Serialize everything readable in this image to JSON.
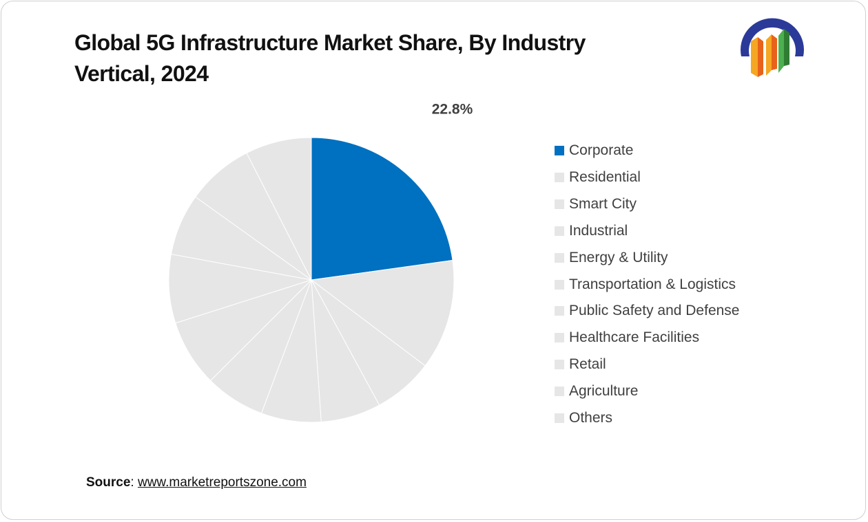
{
  "title": "Global 5G Infrastructure Market Share, By Industry Vertical, 2024",
  "logo": {
    "icon": "market-reports-zone-logo",
    "colors": [
      "#2b3a99",
      "#f5a623",
      "#e8621a",
      "#4caf50"
    ]
  },
  "source": {
    "label": "Source",
    "separator": ": ",
    "url_text": "www.marketreportszone.com"
  },
  "chart_data": {
    "type": "pie",
    "title": "Global 5G Infrastructure Market Share, By Industry Vertical, 2024",
    "legend_position": "right",
    "highlight_color": "#0070c0",
    "muted_color": "#e6e6e6",
    "slices": [
      {
        "label": "Corporate",
        "value": 22.8,
        "data_label": "22.8%",
        "color": "#0070c0"
      },
      {
        "label": "Residential",
        "value": 12.5,
        "color": "#e6e6e6"
      },
      {
        "label": "Smart City",
        "value": 6.8,
        "color": "#e6e6e6"
      },
      {
        "label": "Industrial",
        "value": 6.8,
        "color": "#e6e6e6"
      },
      {
        "label": "Energy & Utility",
        "value": 6.8,
        "color": "#e6e6e6"
      },
      {
        "label": "Transportation & Logistics",
        "value": 6.8,
        "color": "#e6e6e6"
      },
      {
        "label": "Public Safety and Defense",
        "value": 7.6,
        "color": "#e6e6e6"
      },
      {
        "label": "Healthcare Facilities",
        "value": 7.8,
        "color": "#e6e6e6"
      },
      {
        "label": "Retail",
        "value": 7.0,
        "color": "#e6e6e6"
      },
      {
        "label": "Agriculture",
        "value": 7.6,
        "color": "#e6e6e6"
      },
      {
        "label": "Others",
        "value": 7.5,
        "color": "#e6e6e6"
      }
    ]
  }
}
